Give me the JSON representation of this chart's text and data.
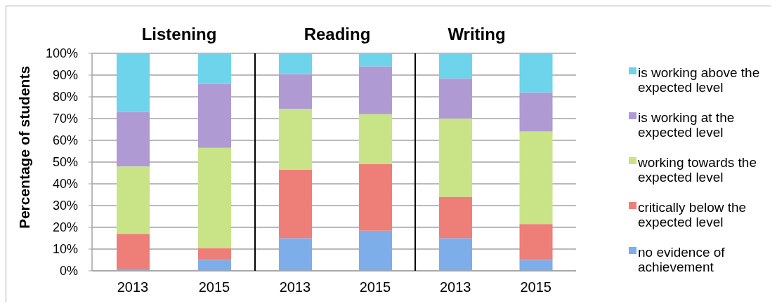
{
  "chart_data": [
    {
      "type": "bar",
      "title": "Listening",
      "ylabel": "Percentage of students",
      "categories": [
        "2013",
        "2015"
      ],
      "stacked": true,
      "series": [
        {
          "color": "#7daeea",
          "values": [
            1,
            5
          ]
        },
        {
          "color": "#ee7f78",
          "values": [
            16,
            5.5
          ]
        },
        {
          "color": "#c9e487",
          "values": [
            31,
            46
          ]
        },
        {
          "color": "#b09ad4",
          "values": [
            25,
            29.5
          ]
        },
        {
          "color": "#6dd4ec",
          "values": [
            27,
            14
          ]
        }
      ],
      "ylim": [
        0,
        100
      ],
      "yticks": [
        {
          "value": 0,
          "label": "0%"
        },
        {
          "value": 10,
          "label": "10%"
        },
        {
          "value": 20,
          "label": "20%"
        },
        {
          "value": 30,
          "label": "30%"
        },
        {
          "value": 40,
          "label": "40%"
        },
        {
          "value": 50,
          "label": "50%"
        },
        {
          "value": 60,
          "label": "60%"
        },
        {
          "value": 70,
          "label": "70%"
        },
        {
          "value": 80,
          "label": "80%"
        },
        {
          "value": 90,
          "label": "90%"
        },
        {
          "value": 100,
          "label": "100%"
        }
      ],
      "grid": "y"
    },
    {
      "type": "bar",
      "title": "Reading",
      "categories": [
        "2013",
        "2015"
      ],
      "stacked": true,
      "series": [
        {
          "color": "#7daeea",
          "values": [
            15,
            18.5
          ]
        },
        {
          "color": "#ee7f78",
          "values": [
            31.5,
            30.5
          ]
        },
        {
          "color": "#c9e487",
          "values": [
            28,
            23
          ]
        },
        {
          "color": "#b09ad4",
          "values": [
            16,
            22
          ]
        },
        {
          "color": "#6dd4ec",
          "values": [
            9.5,
            6
          ]
        }
      ],
      "ylim": [
        0,
        100
      ],
      "yticks": [
        0,
        10,
        20,
        30,
        40,
        50,
        60,
        70,
        80,
        90,
        100
      ],
      "grid": "y",
      "tick_labels": "x"
    },
    {
      "type": "bar",
      "title": "Writing",
      "categories": [
        "2013",
        "2015"
      ],
      "stacked": true,
      "series": [
        {
          "name": "no evidence of achievement",
          "color": "#7daeea",
          "values": [
            15,
            5
          ]
        },
        {
          "name": "critically below the expected level",
          "color": "#ee7f78",
          "values": [
            19,
            16.5
          ]
        },
        {
          "name": "working towards the expected level",
          "color": "#c9e487",
          "values": [
            36,
            42.5
          ]
        },
        {
          "name": "is working at the expected level",
          "color": "#b09ad4",
          "values": [
            18.5,
            18
          ]
        },
        {
          "name": "is working above the expected level",
          "color": "#6dd4ec",
          "values": [
            11.5,
            18
          ]
        }
      ],
      "ylim": [
        0,
        100
      ],
      "yticks": [
        0,
        10,
        20,
        30,
        40,
        50,
        60,
        70,
        80,
        90,
        100
      ],
      "grid": "y",
      "tick_labels": "x",
      "legend": "right"
    }
  ]
}
